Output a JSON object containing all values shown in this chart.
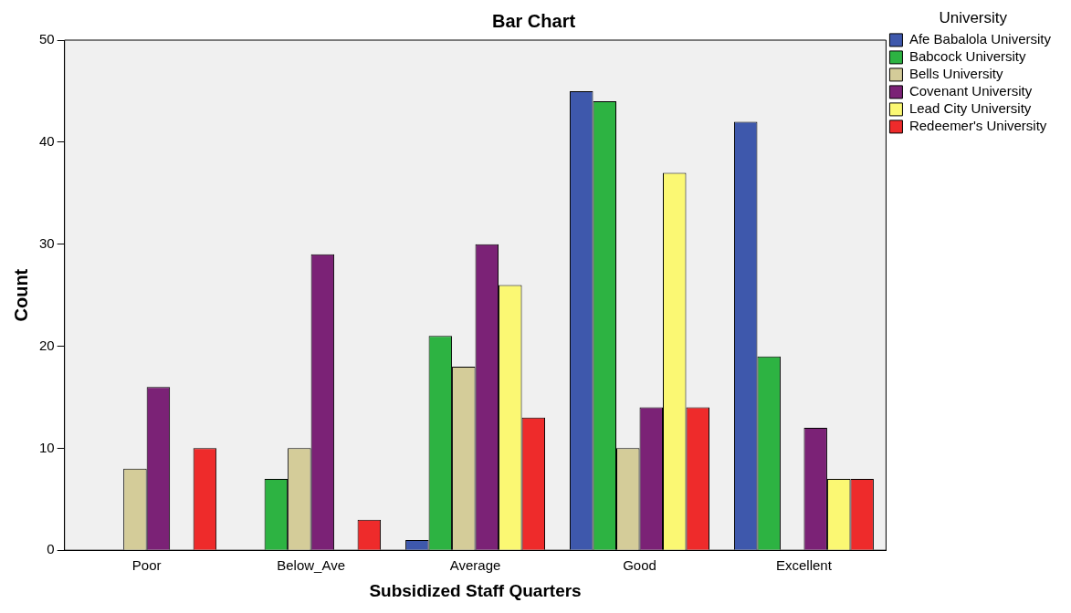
{
  "chart_data": {
    "type": "bar",
    "title": "Bar Chart",
    "xlabel": "Subsidized Staff Quarters",
    "ylabel": "Count",
    "legend_title": "University",
    "legend": "right",
    "grid": false,
    "categories": [
      "Poor",
      "Below_Ave",
      "Average",
      "Good",
      "Excellent"
    ],
    "ylim": [
      0,
      50
    ],
    "yticks": [
      0,
      10,
      20,
      30,
      40,
      50
    ],
    "series": [
      {
        "name": "Afe Babalola University",
        "color": "#3e58ac",
        "values": [
          null,
          null,
          1,
          45,
          42
        ]
      },
      {
        "name": "Babcock University",
        "color": "#2db342",
        "values": [
          null,
          7,
          21,
          44,
          19
        ]
      },
      {
        "name": "Bells University",
        "color": "#d4cc99",
        "values": [
          8,
          10,
          18,
          10,
          null
        ]
      },
      {
        "name": "Covenant University",
        "color": "#7b2276",
        "values": [
          16,
          29,
          30,
          14,
          12
        ]
      },
      {
        "name": "Lead City University",
        "color": "#fbf873",
        "values": [
          null,
          null,
          26,
          37,
          7
        ]
      },
      {
        "name": "Redeemer's University",
        "color": "#ee2b2b",
        "values": [
          10,
          3,
          13,
          14,
          7
        ]
      }
    ]
  }
}
